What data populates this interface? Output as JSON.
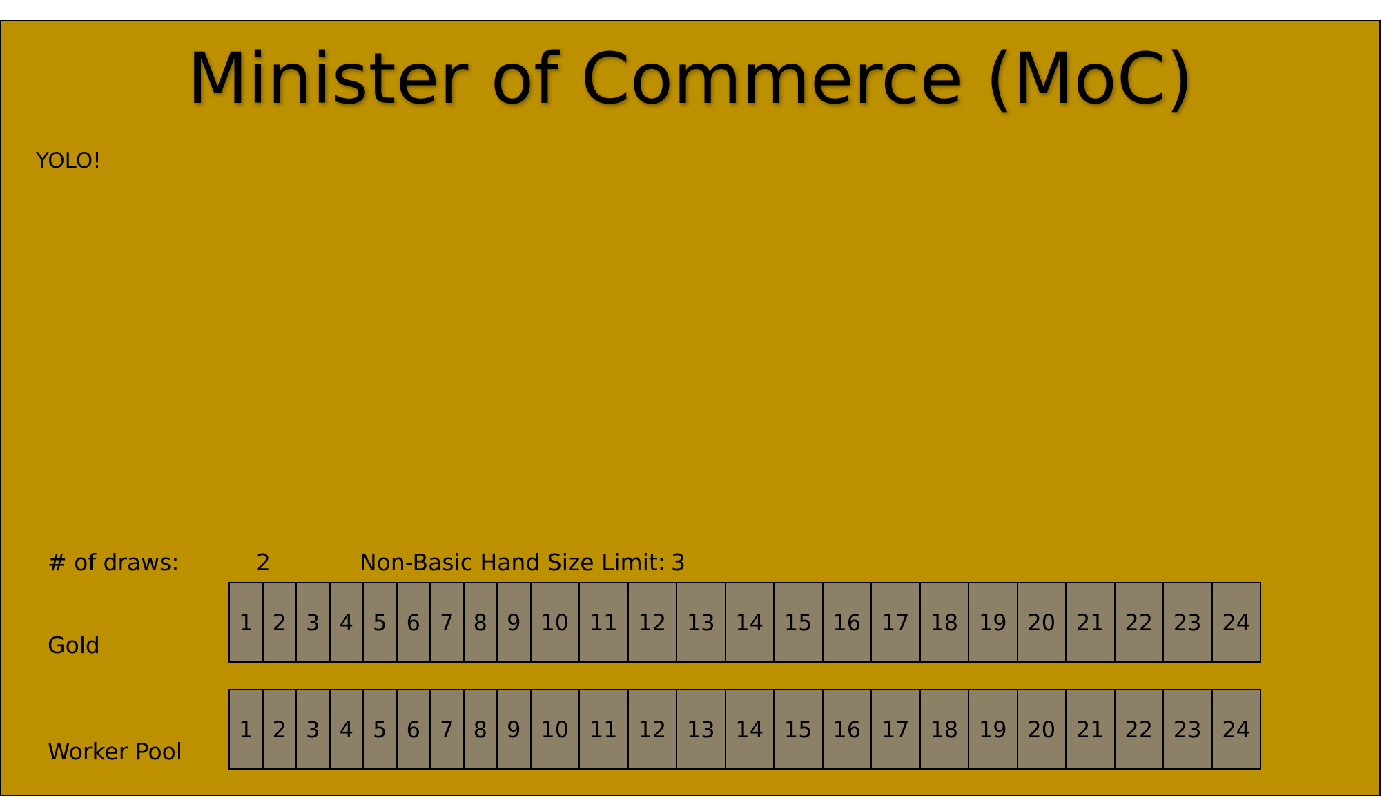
{
  "title": "Minister of Commerce (MoC)",
  "note": "YOLO!",
  "stats": {
    "draws_label": "# of draws:",
    "draws_value": "2",
    "hand_limit_label": "Non-Basic Hand Size Limit:",
    "hand_limit_value": "3"
  },
  "tracks": [
    {
      "label": "Gold",
      "cells": [
        "1",
        "2",
        "3",
        "4",
        "5",
        "6",
        "7",
        "8",
        "9",
        "10",
        "11",
        "12",
        "13",
        "14",
        "15",
        "16",
        "17",
        "18",
        "19",
        "20",
        "21",
        "22",
        "23",
        "24"
      ]
    },
    {
      "label": "Worker Pool",
      "cells": [
        "1",
        "2",
        "3",
        "4",
        "5",
        "6",
        "7",
        "8",
        "9",
        "10",
        "11",
        "12",
        "13",
        "14",
        "15",
        "16",
        "17",
        "18",
        "19",
        "20",
        "21",
        "22",
        "23",
        "24"
      ]
    }
  ],
  "colors": {
    "board_background": "#bd9000",
    "cell_background": "#8c8066"
  }
}
